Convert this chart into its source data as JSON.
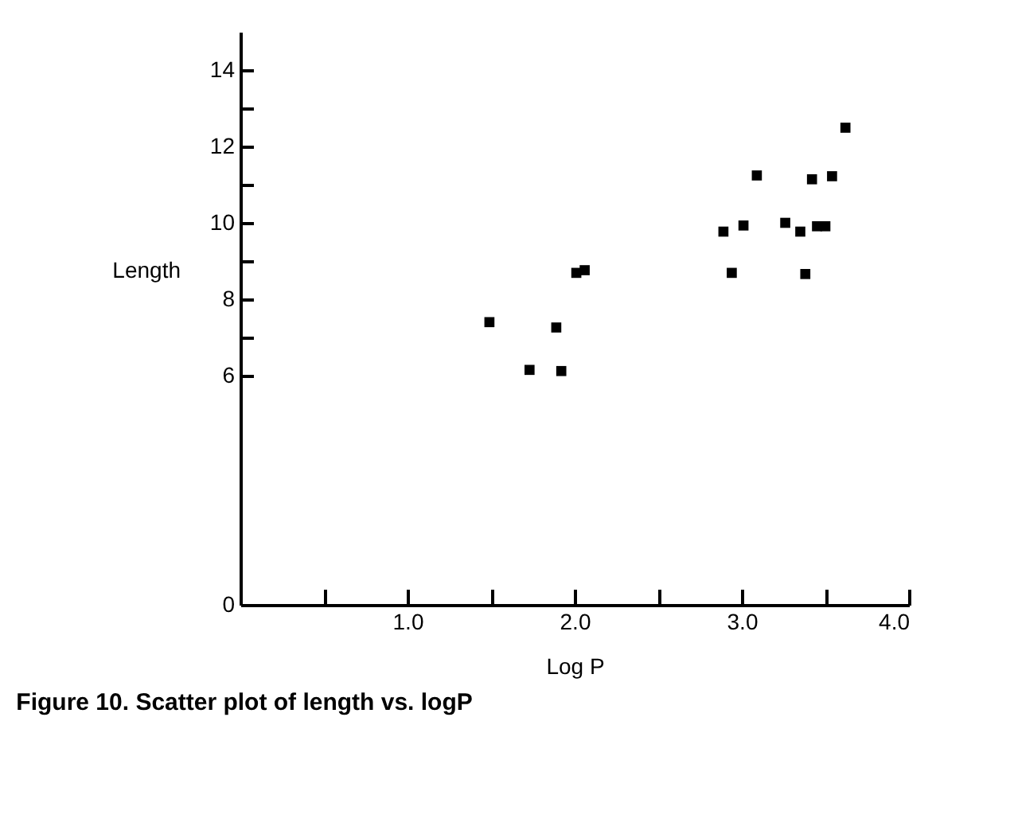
{
  "chart_data": {
    "type": "scatter",
    "xlabel": "Log P",
    "ylabel": "Length",
    "annotations": [
      "Figure 10. Scatter plot of length vs. logP"
    ],
    "x": [
      1.49,
      1.73,
      1.89,
      1.92,
      2.01,
      2.06,
      2.89,
      2.94,
      3.01,
      3.09,
      3.26,
      3.35,
      3.38,
      3.42,
      3.45,
      3.5,
      3.54,
      3.62
    ],
    "series": [
      {
        "color": "#000000",
        "values": [
          7.4,
          6.15,
          7.26,
          6.12,
          8.69,
          8.76,
          9.77,
          8.69,
          9.93,
          11.24,
          10.0,
          9.77,
          8.66,
          11.14,
          9.91,
          9.91,
          11.22,
          12.49
        ]
      }
    ],
    "xlim": [
      0,
      4
    ],
    "ylim": [
      0,
      15
    ],
    "xticks": [
      {
        "value": 0.5,
        "label": null
      },
      {
        "value": 1,
        "label": "1.0"
      },
      {
        "value": 1.5,
        "label": null
      },
      {
        "value": 2,
        "label": "2.0"
      },
      {
        "value": 2.5,
        "label": null
      },
      {
        "value": 3,
        "label": "3.0"
      },
      {
        "value": 3.5,
        "label": null
      },
      {
        "value": 4,
        "label": "4.0"
      }
    ],
    "yticks": [
      0,
      6,
      {
        "value": 7,
        "label": null
      },
      8,
      {
        "value": 9,
        "label": null
      },
      10,
      {
        "value": 11,
        "label": null
      },
      12,
      {
        "value": 13,
        "label": null
      },
      14
    ],
    "marker": "square",
    "grid": false
  }
}
